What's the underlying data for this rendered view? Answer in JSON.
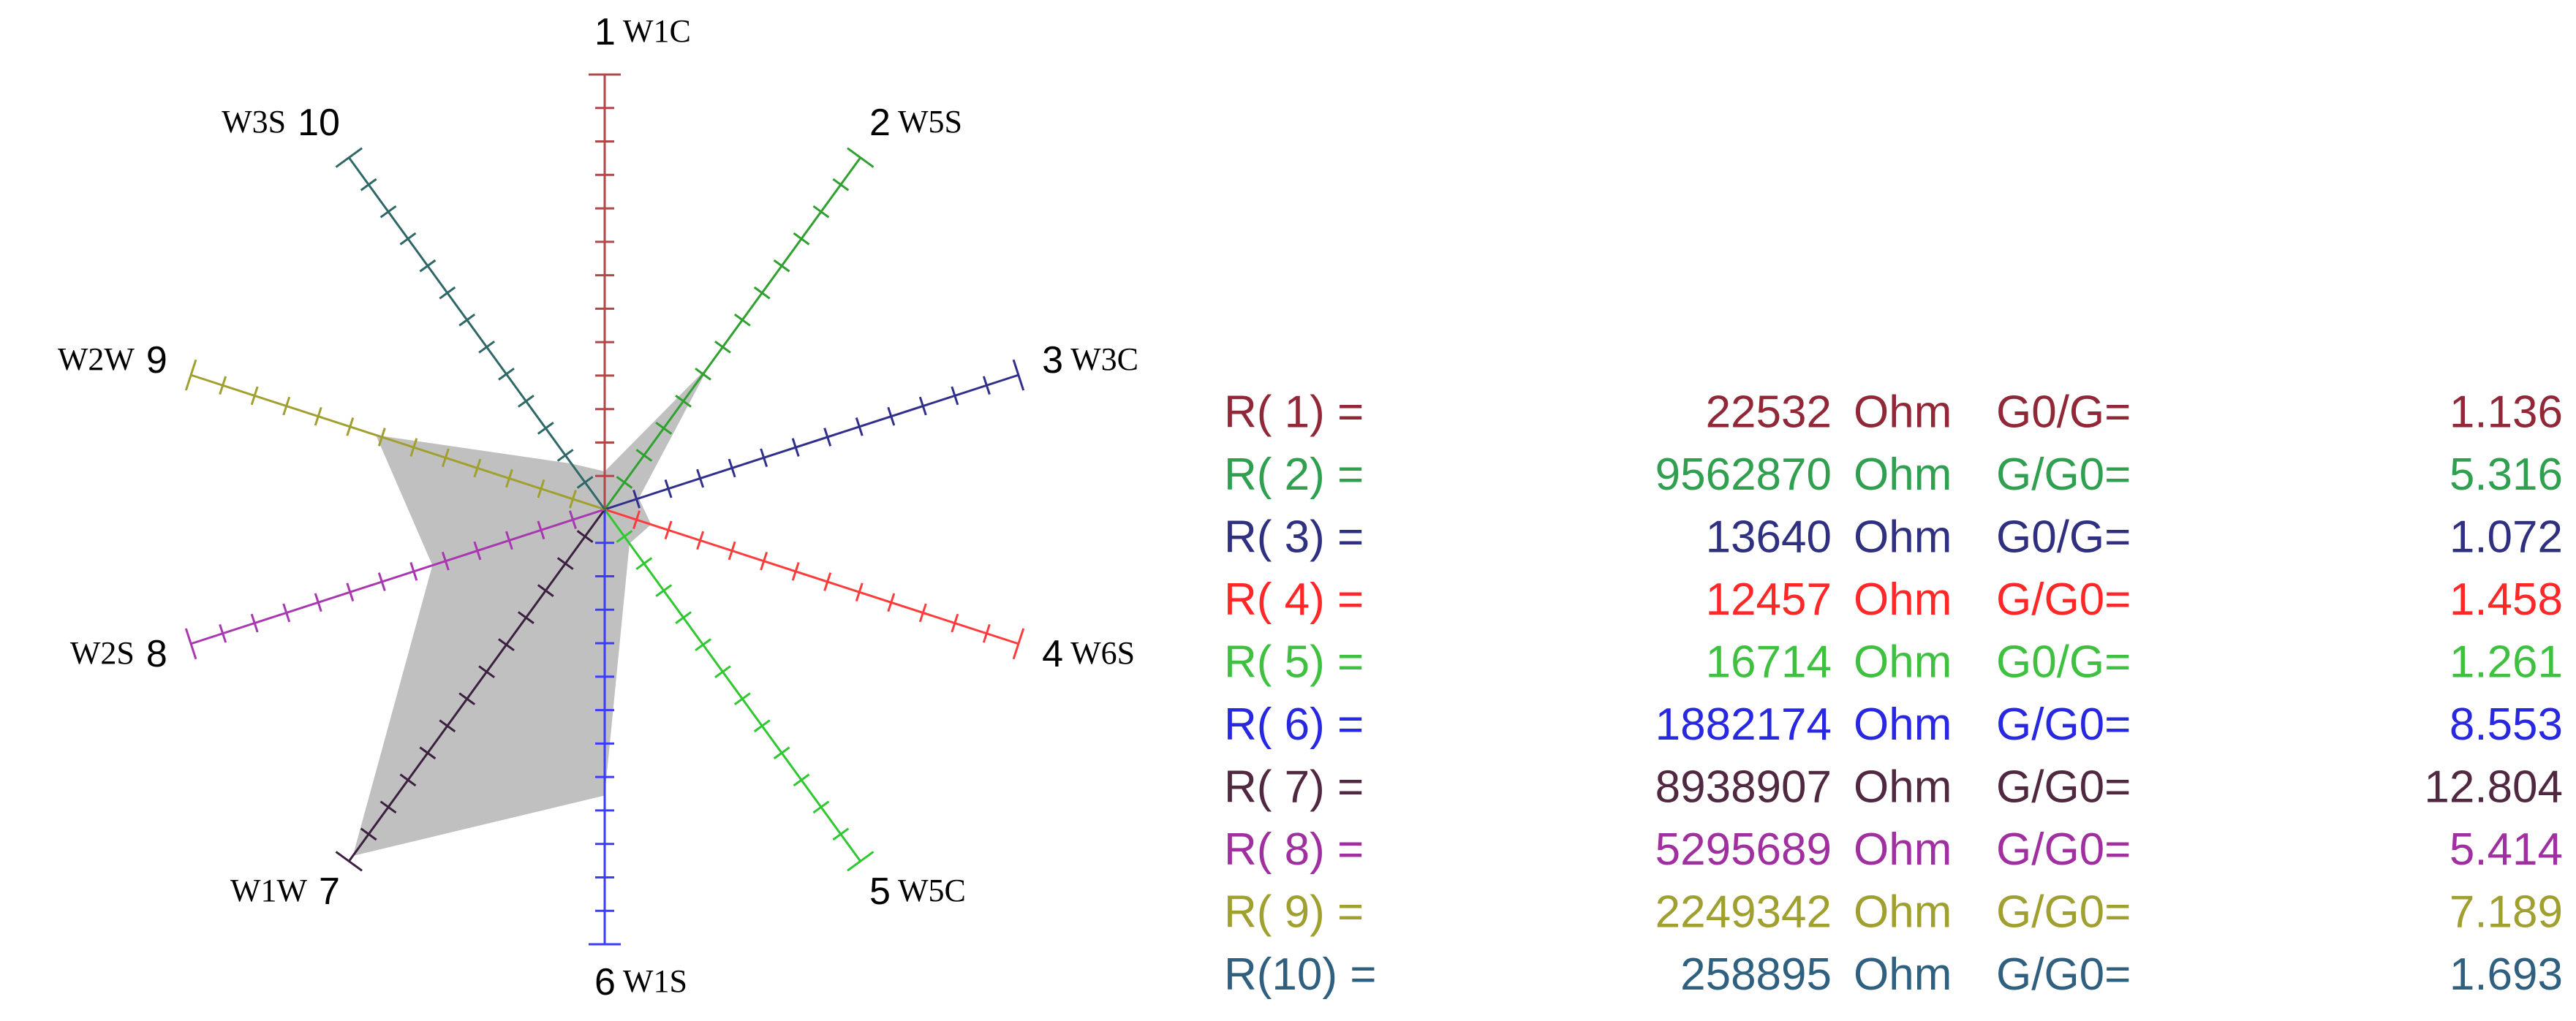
{
  "chart_data": {
    "type": "radar",
    "numbers": [
      "1",
      "2",
      "3",
      "4",
      "5",
      "6",
      "7",
      "8",
      "9",
      "10"
    ],
    "categories": [
      "W1C",
      "W5S",
      "W3C",
      "W6S",
      "W5C",
      "W1S",
      "W1W",
      "W2S",
      "W2W",
      "W3S"
    ],
    "axis_colors": [
      "#b04848",
      "#30a030",
      "#30308c",
      "#ff3c3c",
      "#30c830",
      "#3c3cff",
      "#3c2040",
      "#a838b0",
      "#a0a030",
      "#306868"
    ],
    "values": [
      1.136,
      5.316,
      1.072,
      1.458,
      1.261,
      8.553,
      12.804,
      5.414,
      7.189,
      1.693
    ],
    "fill": "#c0c0c0",
    "rlim": [
      0,
      13
    ],
    "rticks": [
      1,
      2,
      3,
      4,
      5,
      6,
      7,
      8,
      9,
      10,
      11,
      12,
      13
    ]
  },
  "table": {
    "rows": [
      {
        "label": "R( 1) =",
        "resistance": 22532,
        "unit": "Ohm",
        "ratio_label": "G0/G=",
        "color": "#902838"
      },
      {
        "label": "R( 2) =",
        "resistance": 9562870,
        "unit": "Ohm",
        "ratio_label": "G/G0=",
        "color": "#30a050"
      },
      {
        "label": "R( 3) =",
        "resistance": 13640,
        "unit": "Ohm",
        "ratio_label": "G0/G=",
        "color": "#303080"
      },
      {
        "label": "R( 4) =",
        "resistance": 12457,
        "unit": "Ohm",
        "ratio_label": "G/G0=",
        "color": "#ff2828"
      },
      {
        "label": "R( 5) =",
        "resistance": 16714,
        "unit": "Ohm",
        "ratio_label": "G0/G=",
        "color": "#40c040"
      },
      {
        "label": "R( 6) =",
        "resistance": 1882174,
        "unit": "Ohm",
        "ratio_label": "G/G0=",
        "color": "#2828e0"
      },
      {
        "label": "R( 7) =",
        "resistance": 8938907,
        "unit": "Ohm",
        "ratio_label": "G/G0=",
        "color": "#502840"
      },
      {
        "label": "R( 8) =",
        "resistance": 5295689,
        "unit": "Ohm",
        "ratio_label": "G/G0=",
        "color": "#a030a0"
      },
      {
        "label": "R( 9) =",
        "resistance": 2249342,
        "unit": "Ohm",
        "ratio_label": "G/G0=",
        "color": "#a0a030"
      },
      {
        "label": "R(10) =",
        "resistance": 258895,
        "unit": "Ohm",
        "ratio_label": "G/G0=",
        "color": "#306080"
      }
    ]
  }
}
